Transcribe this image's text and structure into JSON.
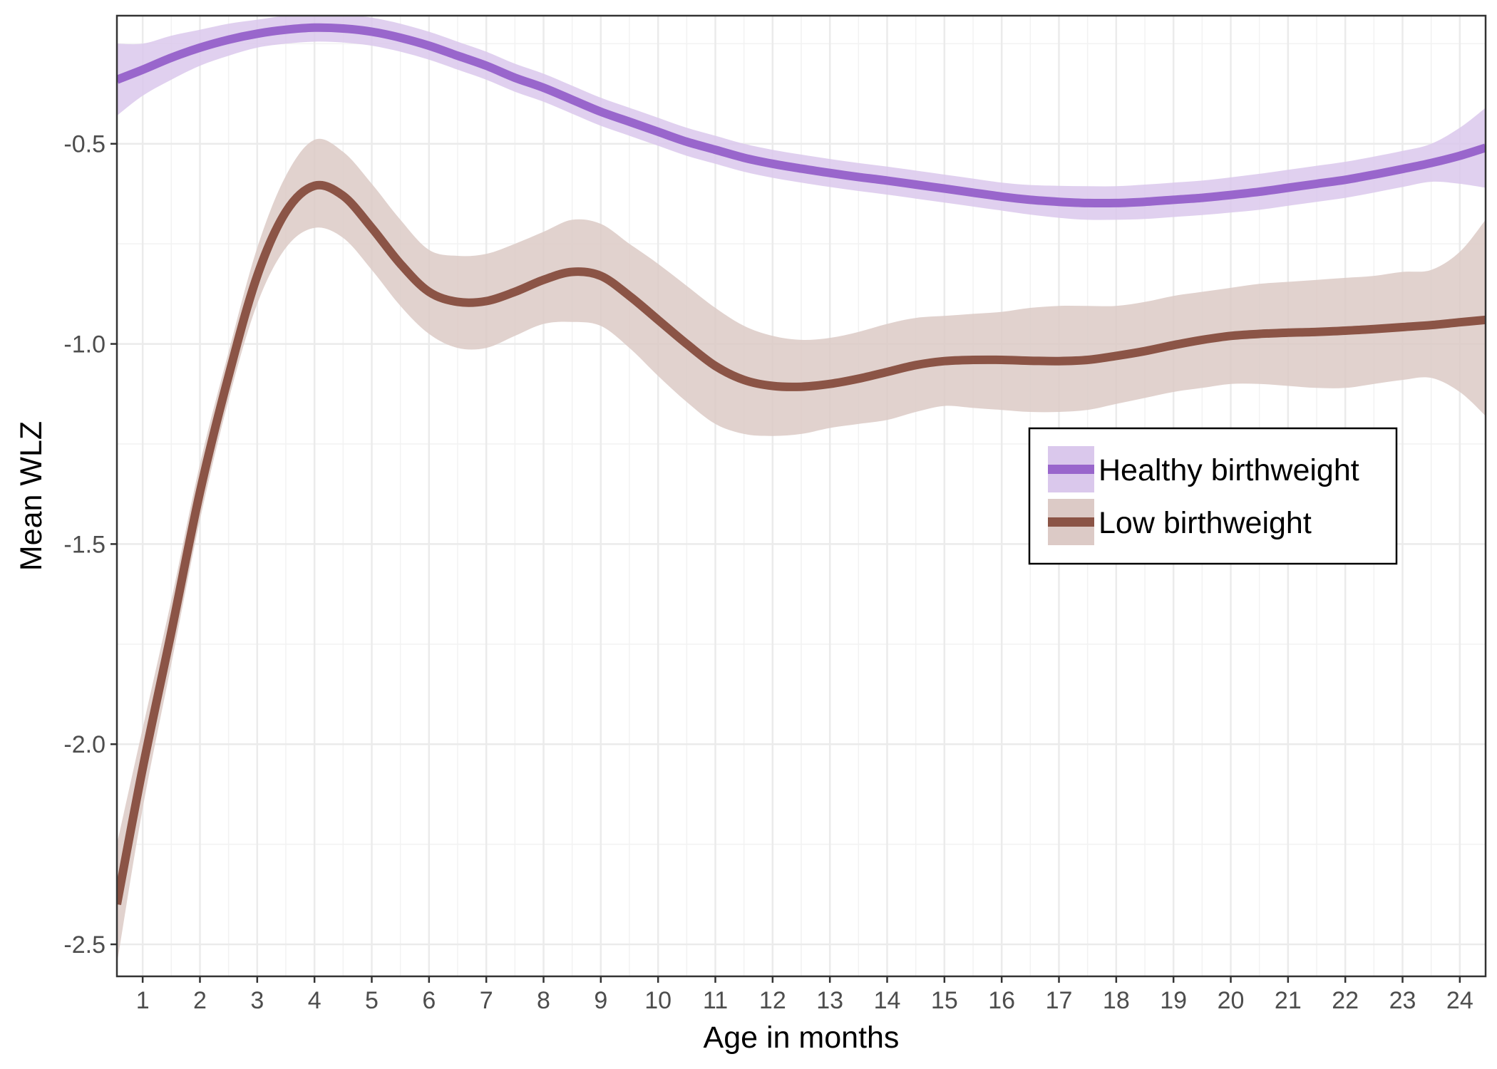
{
  "chart_data": {
    "type": "line",
    "title": "",
    "xlabel": "Age in months",
    "ylabel": "Mean WLZ",
    "xlim": [
      0.55,
      24.45
    ],
    "ylim": [
      -2.58,
      -0.18
    ],
    "x_ticks": [
      1,
      2,
      3,
      4,
      5,
      6,
      7,
      8,
      9,
      10,
      11,
      12,
      13,
      14,
      15,
      16,
      17,
      18,
      19,
      20,
      21,
      22,
      23,
      24
    ],
    "x_tick_labels": [
      "1",
      "2",
      "3",
      "4",
      "5",
      "6",
      "7",
      "8",
      "9",
      "10",
      "11",
      "12",
      "13",
      "14",
      "15",
      "16",
      "17",
      "18",
      "19",
      "20",
      "21",
      "22",
      "23",
      "24"
    ],
    "y_ticks": [
      -2.5,
      -2.0,
      -1.5,
      -1.0,
      -0.5
    ],
    "y_tick_labels": [
      "-2.5",
      "-2.0",
      "-1.5",
      "-1.0",
      "-0.5"
    ],
    "grid": true,
    "legend_position": "right",
    "series": [
      {
        "name": "Healthy birthweight",
        "line_color": "#9966cc",
        "band_color": "#dac8ec",
        "x": [
          0.55,
          1,
          1.5,
          2,
          2.5,
          3,
          3.5,
          4,
          4.5,
          5,
          5.5,
          6,
          6.5,
          7,
          7.5,
          8,
          8.5,
          9,
          9.5,
          10,
          10.5,
          11,
          11.5,
          12,
          12.5,
          13,
          13.5,
          14,
          14.5,
          15,
          15.5,
          16,
          16.5,
          17,
          17.5,
          18,
          18.5,
          19,
          19.5,
          20,
          20.5,
          21,
          21.5,
          22,
          22.5,
          23,
          23.5,
          24,
          24.45
        ],
        "y": [
          -0.34,
          -0.315,
          -0.285,
          -0.26,
          -0.24,
          -0.225,
          -0.215,
          -0.21,
          -0.212,
          -0.22,
          -0.235,
          -0.255,
          -0.28,
          -0.305,
          -0.335,
          -0.36,
          -0.39,
          -0.42,
          -0.445,
          -0.47,
          -0.495,
          -0.515,
          -0.535,
          -0.55,
          -0.562,
          -0.573,
          -0.583,
          -0.592,
          -0.602,
          -0.612,
          -0.622,
          -0.632,
          -0.64,
          -0.645,
          -0.648,
          -0.648,
          -0.645,
          -0.64,
          -0.635,
          -0.628,
          -0.62,
          -0.61,
          -0.6,
          -0.59,
          -0.577,
          -0.563,
          -0.548,
          -0.53,
          -0.51
        ],
        "lower": [
          -0.43,
          -0.38,
          -0.34,
          -0.305,
          -0.28,
          -0.26,
          -0.25,
          -0.245,
          -0.247,
          -0.255,
          -0.27,
          -0.29,
          -0.315,
          -0.34,
          -0.37,
          -0.395,
          -0.425,
          -0.455,
          -0.48,
          -0.505,
          -0.53,
          -0.55,
          -0.57,
          -0.585,
          -0.597,
          -0.608,
          -0.618,
          -0.627,
          -0.637,
          -0.647,
          -0.657,
          -0.667,
          -0.677,
          -0.685,
          -0.69,
          -0.69,
          -0.688,
          -0.683,
          -0.678,
          -0.672,
          -0.665,
          -0.655,
          -0.645,
          -0.635,
          -0.622,
          -0.608,
          -0.595,
          -0.6,
          -0.61
        ],
        "upper": [
          -0.25,
          -0.25,
          -0.23,
          -0.215,
          -0.2,
          -0.19,
          -0.18,
          -0.175,
          -0.177,
          -0.185,
          -0.2,
          -0.22,
          -0.245,
          -0.27,
          -0.3,
          -0.325,
          -0.355,
          -0.385,
          -0.41,
          -0.435,
          -0.46,
          -0.48,
          -0.5,
          -0.515,
          -0.527,
          -0.538,
          -0.548,
          -0.557,
          -0.567,
          -0.577,
          -0.587,
          -0.597,
          -0.603,
          -0.605,
          -0.606,
          -0.606,
          -0.602,
          -0.597,
          -0.592,
          -0.584,
          -0.575,
          -0.565,
          -0.555,
          -0.545,
          -0.532,
          -0.518,
          -0.5,
          -0.46,
          -0.41
        ]
      },
      {
        "name": "Low birthweight",
        "line_color": "#8b5446",
        "band_color": "#dccac6",
        "x": [
          0.55,
          1,
          1.5,
          2,
          2.5,
          3,
          3.5,
          4,
          4.5,
          5,
          5.5,
          6,
          6.5,
          7,
          7.5,
          8,
          8.5,
          9,
          9.5,
          10,
          10.5,
          11,
          11.5,
          12,
          12.5,
          13,
          13.5,
          14,
          14.5,
          15,
          15.5,
          16,
          16.5,
          17,
          17.5,
          18,
          18.5,
          19,
          19.5,
          20,
          20.5,
          21,
          21.5,
          22,
          22.5,
          23,
          23.5,
          24,
          24.45
        ],
        "y": [
          -2.4,
          -2.06,
          -1.72,
          -1.37,
          -1.08,
          -0.83,
          -0.67,
          -0.605,
          -0.63,
          -0.71,
          -0.8,
          -0.87,
          -0.895,
          -0.893,
          -0.87,
          -0.84,
          -0.82,
          -0.83,
          -0.88,
          -0.94,
          -1.0,
          -1.055,
          -1.09,
          -1.105,
          -1.107,
          -1.1,
          -1.087,
          -1.07,
          -1.053,
          -1.043,
          -1.04,
          -1.04,
          -1.042,
          -1.043,
          -1.04,
          -1.03,
          -1.018,
          -1.003,
          -0.99,
          -0.98,
          -0.975,
          -0.972,
          -0.97,
          -0.967,
          -0.963,
          -0.958,
          -0.953,
          -0.946,
          -0.94
        ],
        "lower": [
          -2.55,
          -2.16,
          -1.8,
          -1.44,
          -1.14,
          -0.9,
          -0.76,
          -0.71,
          -0.735,
          -0.815,
          -0.905,
          -0.975,
          -1.01,
          -1.01,
          -0.98,
          -0.95,
          -0.945,
          -0.955,
          -1.01,
          -1.08,
          -1.145,
          -1.2,
          -1.225,
          -1.23,
          -1.225,
          -1.21,
          -1.2,
          -1.19,
          -1.17,
          -1.155,
          -1.16,
          -1.165,
          -1.17,
          -1.17,
          -1.165,
          -1.15,
          -1.135,
          -1.12,
          -1.11,
          -1.1,
          -1.1,
          -1.105,
          -1.11,
          -1.11,
          -1.1,
          -1.09,
          -1.085,
          -1.12,
          -1.18
        ],
        "upper": [
          -2.25,
          -1.96,
          -1.64,
          -1.3,
          -1.02,
          -0.76,
          -0.58,
          -0.49,
          -0.52,
          -0.6,
          -0.69,
          -0.765,
          -0.78,
          -0.775,
          -0.75,
          -0.72,
          -0.69,
          -0.7,
          -0.75,
          -0.8,
          -0.855,
          -0.91,
          -0.955,
          -0.98,
          -0.99,
          -0.985,
          -0.97,
          -0.95,
          -0.935,
          -0.93,
          -0.925,
          -0.92,
          -0.91,
          -0.905,
          -0.905,
          -0.905,
          -0.895,
          -0.88,
          -0.87,
          -0.86,
          -0.85,
          -0.845,
          -0.84,
          -0.835,
          -0.83,
          -0.82,
          -0.815,
          -0.77,
          -0.69
        ]
      }
    ]
  }
}
